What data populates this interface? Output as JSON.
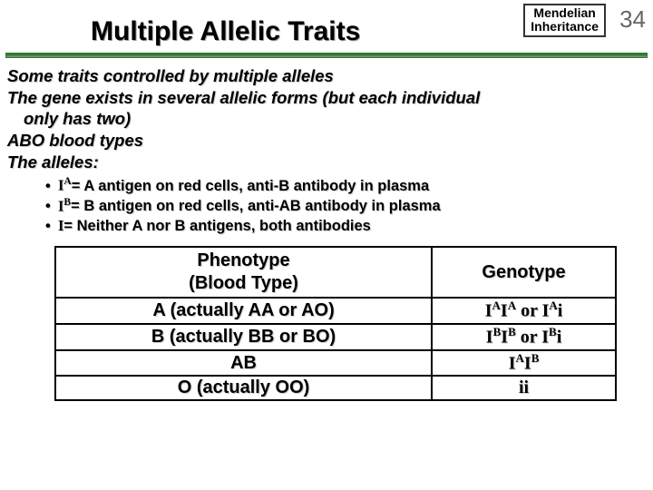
{
  "header": {
    "line1": "Mendelian",
    "line2": "Inheritance",
    "page": "34"
  },
  "title": "Multiple Allelic Traits",
  "body": {
    "p1": "Some traits controlled by multiple alleles",
    "p2a": "The gene exists in several allelic forms (but each individual",
    "p2b": "only has two)",
    "p3": "ABO blood types",
    "p4": "The alleles:"
  },
  "bullets": [
    {
      "allele_html": "I<sup>A</sup>",
      "desc": " = A antigen on red cells, anti-B antibody in plasma"
    },
    {
      "allele_html": "I<sup>B</sup>",
      "desc": " = B antigen on red cells, anti-AB antibody in plasma"
    },
    {
      "allele_html": "I ",
      "desc": " = Neither A  nor B antigens, both antibodies"
    }
  ],
  "table": {
    "head_left_l1": "Phenotype",
    "head_left_l2": "(Blood Type)",
    "head_right": "Genotype",
    "rows": [
      {
        "pheno": "A (actually AA or AO)",
        "geno_html": "I<sup>A</sup>I<sup>A</sup> or I<sup>A</sup>i"
      },
      {
        "pheno": "B (actually BB or BO)",
        "geno_html": "I<sup>B</sup>I<sup>B</sup> or I<sup>B</sup>i"
      },
      {
        "pheno": "AB",
        "geno_html": "I<sup>A</sup>I<sup>B</sup>"
      },
      {
        "pheno": "O (actually OO)",
        "geno_html": "ii"
      }
    ]
  }
}
